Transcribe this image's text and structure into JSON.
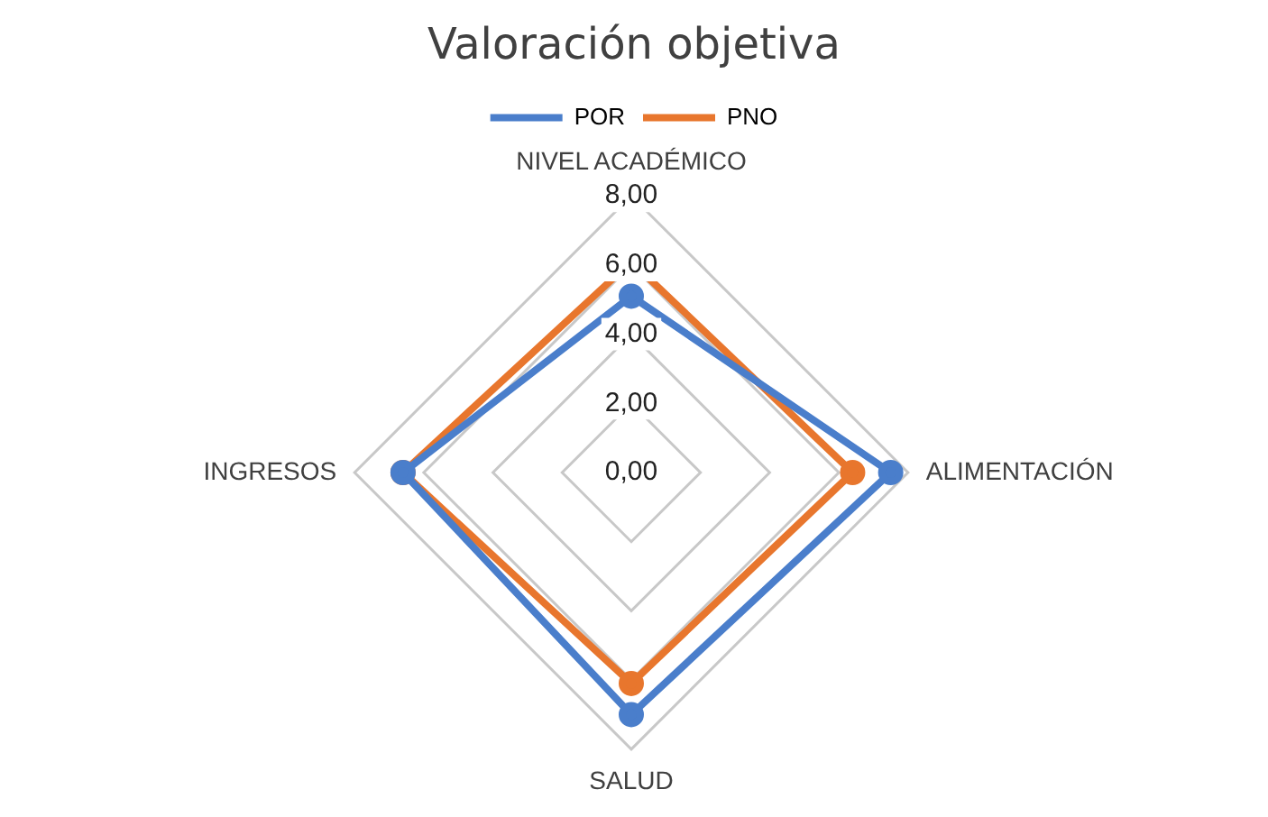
{
  "chart_data": {
    "type": "radar",
    "title": "Valoración objetiva",
    "categories": [
      "NIVEL ACADÉMICO",
      "ALIMENTACIÓN",
      "SALUD",
      "INGRESOS"
    ],
    "series": [
      {
        "name": "POR",
        "color": "#4a7ecb",
        "values": [
          5.1,
          7.5,
          7.0,
          6.6
        ]
      },
      {
        "name": "PNO",
        "color": "#e8762d",
        "values": [
          6.1,
          6.4,
          6.1,
          6.6
        ]
      }
    ],
    "ylim": [
      0,
      8
    ],
    "yticks": [
      {
        "value": 0,
        "label": "0,00"
      },
      {
        "value": 2,
        "label": "2,00"
      },
      {
        "value": 4,
        "label": "4,00"
      },
      {
        "value": 6,
        "label": "6,00"
      },
      {
        "value": 8,
        "label": "8,00"
      }
    ],
    "grid": true,
    "legend": "top",
    "marker": "circle"
  }
}
